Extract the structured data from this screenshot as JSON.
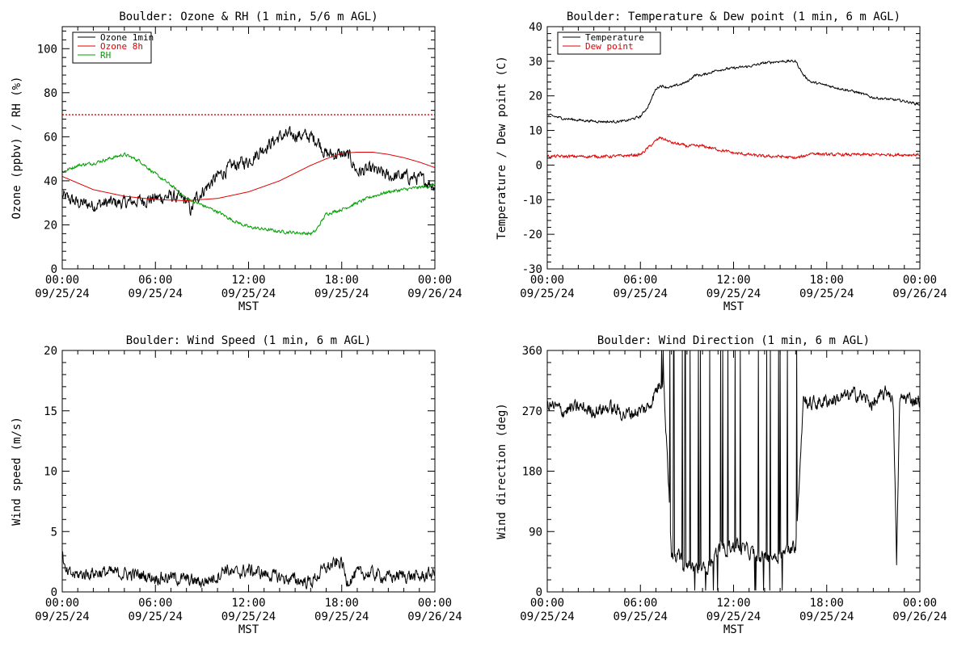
{
  "colors": {
    "black": "#000000",
    "red": "#e00000",
    "green": "#00a000"
  },
  "x_ticks": [
    {
      "hour": 0,
      "time": "00:00",
      "date": "09/25/24"
    },
    {
      "hour": 6,
      "time": "06:00",
      "date": "09/25/24"
    },
    {
      "hour": 12,
      "time": "12:00",
      "date": "09/25/24"
    },
    {
      "hour": 18,
      "time": "18:00",
      "date": "09/25/24"
    },
    {
      "hour": 24,
      "time": "00:00",
      "date": "09/26/24"
    }
  ],
  "x_axis_label": "MST",
  "chart_data": [
    {
      "id": "ozone",
      "type": "line",
      "title": "Boulder: Ozone & RH (1 min, 5/6 m AGL)",
      "ylabel": "Ozone (ppbv) / RH (%)",
      "xlim": [
        0,
        24
      ],
      "ylim": [
        0,
        110
      ],
      "yticks": [
        0,
        20,
        40,
        60,
        80,
        100
      ],
      "reference_line": {
        "value": 70,
        "color": "#e00000",
        "style": "dotted"
      },
      "legend": {
        "placement": "top-left"
      },
      "series": [
        {
          "name": "Ozone 1min",
          "color": "#000000",
          "noise": 2.5,
          "x": [
            0,
            1,
            2,
            3,
            4,
            5,
            6,
            7,
            8,
            8.3,
            8.6,
            9,
            10,
            11,
            12,
            13,
            14,
            15,
            16,
            16.5,
            17,
            18,
            18.5,
            19,
            20,
            21,
            22,
            23,
            24
          ],
          "y": [
            33,
            30,
            29,
            30,
            30,
            31,
            32,
            33,
            31,
            26,
            32,
            35,
            42,
            47,
            49,
            55,
            60,
            61,
            60,
            58,
            52,
            52,
            51,
            44,
            45,
            42,
            42,
            41,
            38
          ]
        },
        {
          "name": "Ozone 8h",
          "color": "#e00000",
          "noise": 0,
          "x": [
            0,
            2,
            4,
            6,
            8,
            10,
            12,
            14,
            16,
            17,
            18,
            19,
            20,
            21,
            22,
            23,
            24
          ],
          "y": [
            42,
            36,
            33,
            31.5,
            31,
            32,
            35,
            40,
            47,
            50,
            52.5,
            53,
            53,
            52,
            50.5,
            48.5,
            46
          ]
        },
        {
          "name": "RH",
          "color": "#00a000",
          "noise": 0.6,
          "x": [
            0,
            1,
            2,
            3,
            4,
            5,
            6,
            7,
            8,
            9,
            10,
            11,
            12,
            13,
            14,
            15,
            16,
            16.3,
            17,
            18,
            19,
            20,
            21,
            22,
            23,
            24
          ],
          "y": [
            44,
            47,
            48,
            50,
            52,
            49,
            43,
            38,
            32,
            29,
            26,
            22,
            19,
            18,
            17,
            16.5,
            16,
            17,
            25,
            27,
            30,
            33,
            35,
            36,
            37,
            38
          ]
        }
      ]
    },
    {
      "id": "temp",
      "type": "line",
      "title": "Boulder: Temperature & Dew point (1 min, 6 m AGL)",
      "ylabel": "Temperature / Dew point (C)",
      "xlim": [
        0,
        24
      ],
      "ylim": [
        -30,
        40
      ],
      "yticks": [
        -30,
        -20,
        -10,
        0,
        10,
        20,
        30,
        40
      ],
      "legend": {
        "placement": "top-left"
      },
      "series": [
        {
          "name": "Temperature",
          "color": "#000000",
          "noise": 0.3,
          "x": [
            0,
            1,
            2,
            3,
            4,
            5,
            6,
            6.5,
            7,
            7.3,
            7.7,
            8,
            9,
            9.5,
            10,
            11,
            12,
            13,
            14,
            15,
            16,
            16.5,
            17,
            18,
            19,
            20,
            21,
            22,
            23,
            24
          ],
          "y": [
            14.5,
            13.5,
            13,
            12.7,
            12.5,
            12.7,
            14,
            17,
            22,
            23,
            22.5,
            22.5,
            24,
            26,
            26,
            27.5,
            28,
            28.5,
            29.5,
            30,
            30,
            26,
            24,
            23,
            22,
            21,
            19.5,
            19,
            18.5,
            17.5
          ]
        },
        {
          "name": "Dew point",
          "color": "#e00000",
          "noise": 0.35,
          "x": [
            0,
            2,
            4,
            5,
            6,
            6.5,
            7,
            7.3,
            8,
            9,
            10,
            11,
            12,
            13,
            14,
            15,
            16,
            16.5,
            17,
            18,
            19,
            20,
            21,
            22,
            23,
            24
          ],
          "y": [
            2.5,
            2.5,
            2.5,
            2.7,
            3,
            5,
            7,
            8,
            6.5,
            5.5,
            5.5,
            4.5,
            3.5,
            3,
            2.5,
            2.5,
            2,
            2.5,
            3.5,
            3,
            3,
            3,
            3,
            3,
            3,
            3
          ]
        }
      ]
    },
    {
      "id": "wspd",
      "type": "line",
      "title": "Boulder: Wind Speed (1 min, 6 m AGL)",
      "ylabel": "Wind speed (m/s)",
      "xlim": [
        0,
        24
      ],
      "ylim": [
        0,
        20
      ],
      "yticks": [
        0,
        5,
        10,
        15,
        20
      ],
      "series": [
        {
          "name": "",
          "color": "#000000",
          "noise": 0.45,
          "x": [
            0,
            0.2,
            1,
            2,
            3,
            4,
            5,
            6,
            7,
            8,
            9,
            10,
            10.5,
            11,
            12,
            13,
            14,
            15,
            16,
            17,
            18,
            18.3,
            19,
            20,
            21,
            22,
            23,
            24
          ],
          "y": [
            3.2,
            1.5,
            1.4,
            1.6,
            1.6,
            1.5,
            1.4,
            1.2,
            1.2,
            1.0,
            0.8,
            1.3,
            2.0,
            1.5,
            1.8,
            1.5,
            1.2,
            1.0,
            0.8,
            2.0,
            2.5,
            0.9,
            1.5,
            1.5,
            1.2,
            1.4,
            1.2,
            1.6
          ]
        }
      ]
    },
    {
      "id": "wdir",
      "type": "line",
      "title": "Boulder: Wind Direction (1 min, 6 m AGL)",
      "ylabel": "Wind direction (deg)",
      "xlim": [
        0,
        24
      ],
      "ylim": [
        0,
        360
      ],
      "yticks": [
        0,
        90,
        180,
        270,
        360
      ],
      "series": [
        {
          "name": "",
          "color": "#000000",
          "noise": 9,
          "x": [
            0,
            1,
            2,
            3,
            4,
            5,
            6,
            6.5,
            7,
            7.5,
            8,
            9,
            10,
            11,
            12,
            13,
            14,
            15,
            16,
            16.5,
            17,
            18,
            19,
            20,
            21,
            22,
            22.3,
            22.5,
            22.7,
            23,
            24
          ],
          "y": [
            280,
            270,
            275,
            270,
            275,
            265,
            270,
            275,
            300,
            320,
            60,
            40,
            30,
            60,
            70,
            60,
            50,
            55,
            70,
            290,
            280,
            285,
            290,
            295,
            280,
            300,
            280,
            40,
            285,
            290,
            285
          ]
        }
      ]
    }
  ]
}
